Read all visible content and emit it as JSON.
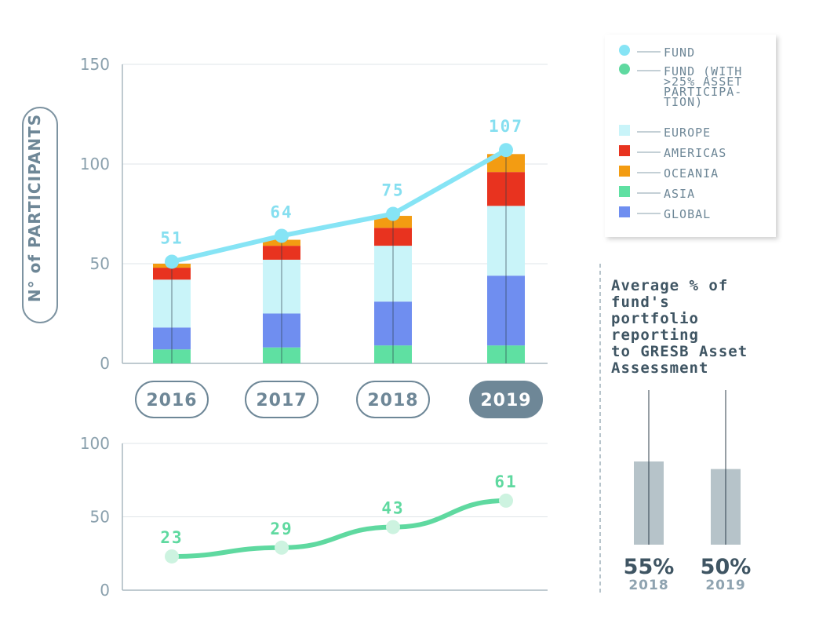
{
  "colors": {
    "fund": "#86e4f5",
    "fund_asset": "#5fd9a0",
    "europe": "#c9f4f9",
    "americas": "#e8331f",
    "oceania": "#f39c12",
    "asia": "#5fe0a2",
    "global": "#6f8ef0",
    "bar_grey": "#b6c3c9",
    "pill_dark": "#6e8797"
  },
  "chart_data": [
    {
      "type": "bar",
      "stacked": true,
      "ylabel": "N° of PARTICIPANTS",
      "ylim": [
        0,
        150
      ],
      "yticks": [
        0,
        50,
        100,
        150
      ],
      "categories": [
        "2016",
        "2017",
        "2018",
        "2019"
      ],
      "highlighted_category": "2019",
      "series": [
        {
          "name": "GLOBAL",
          "key": "global",
          "values": [
            11,
            17,
            22,
            35
          ]
        },
        {
          "name": "ASIA",
          "key": "asia",
          "values": [
            7,
            8,
            9,
            9
          ]
        },
        {
          "name": "EUROPE",
          "key": "europe",
          "values": [
            24,
            27,
            28,
            35
          ]
        },
        {
          "name": "AMERICAS",
          "key": "americas",
          "values": [
            6,
            7,
            9,
            17
          ]
        },
        {
          "name": "OCEANIA",
          "key": "oceania",
          "values": [
            2,
            3,
            6,
            9
          ]
        }
      ],
      "stack_order": [
        "asia",
        "global",
        "europe",
        "americas",
        "oceania"
      ],
      "line": {
        "name": "FUND",
        "values": [
          51,
          64,
          75,
          107
        ],
        "labels": [
          "51",
          "64",
          "75",
          "107"
        ]
      }
    },
    {
      "type": "line",
      "ylim": [
        0,
        100
      ],
      "yticks": [
        0,
        50,
        100
      ],
      "categories": [
        "2016",
        "2017",
        "2018",
        "2019"
      ],
      "series": [
        {
          "name": "FUND (WITH >25% ASSET PARTICIPATION)",
          "values": [
            23,
            29,
            43,
            61
          ],
          "labels": [
            "23",
            "29",
            "43",
            "61"
          ]
        }
      ]
    },
    {
      "type": "bar",
      "title": "Average % of fund's portfolio reporting to GRESB Asset Assessment",
      "categories": [
        "2018",
        "2019"
      ],
      "values": [
        55,
        50
      ],
      "value_labels": [
        "55%",
        "50%"
      ],
      "ylim": [
        0,
        100
      ]
    }
  ],
  "legend": [
    {
      "key": "fund",
      "shape": "circle",
      "label_lines": [
        "FUND"
      ]
    },
    {
      "key": "fund_asset",
      "shape": "circle",
      "label_lines": [
        "FUND (WITH",
        ">25% ASSET",
        "PARTICIPA-",
        "TION)"
      ]
    },
    {
      "key": "europe",
      "shape": "square",
      "label_lines": [
        "EUROPE"
      ]
    },
    {
      "key": "americas",
      "shape": "square",
      "label_lines": [
        "AMERICAS"
      ]
    },
    {
      "key": "oceania",
      "shape": "square",
      "label_lines": [
        "OCEANIA"
      ]
    },
    {
      "key": "asia",
      "shape": "square",
      "label_lines": [
        "ASIA"
      ]
    },
    {
      "key": "global",
      "shape": "square",
      "label_lines": [
        "GLOBAL"
      ]
    }
  ],
  "avg_title_lines": [
    "Average % of",
    "fund's",
    "portfolio",
    "reporting",
    "to GRESB Asset",
    "Assessment"
  ]
}
